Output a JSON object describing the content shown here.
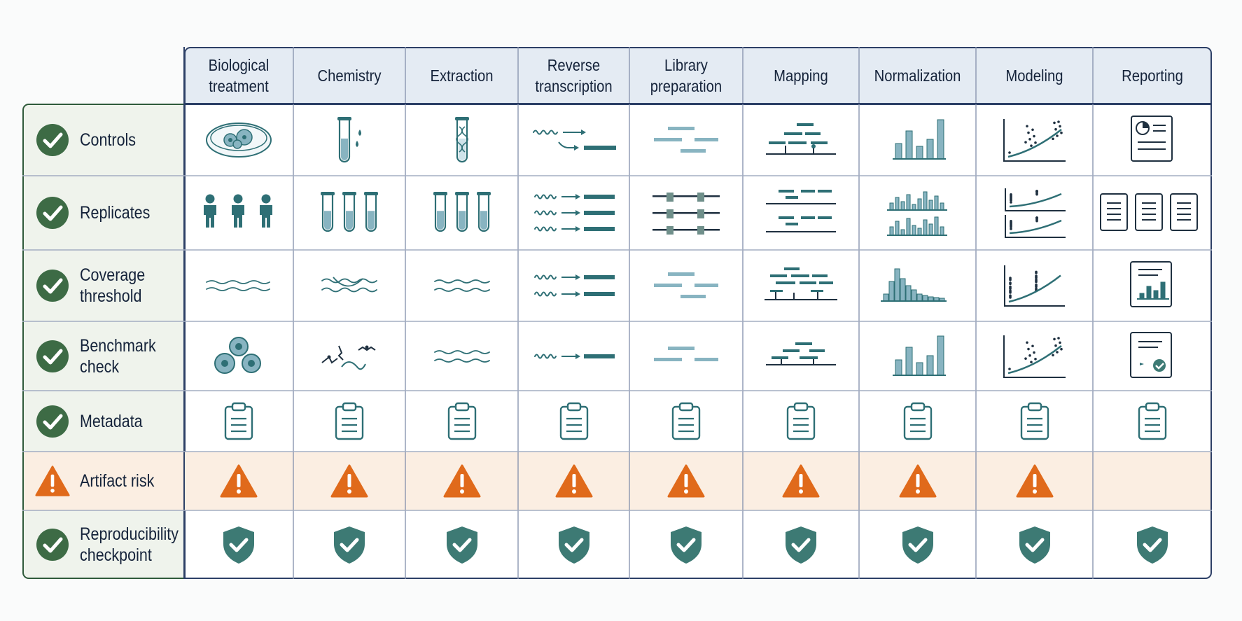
{
  "columns": [
    {
      "label": "Biological treatment"
    },
    {
      "label": "Chemistry"
    },
    {
      "label": "Extraction"
    },
    {
      "label": "Reverse transcription"
    },
    {
      "label": "Library preparation"
    },
    {
      "label": "Mapping"
    },
    {
      "label": "Normalization"
    },
    {
      "label": "Modeling"
    },
    {
      "label": "Reporting"
    }
  ],
  "rows": [
    {
      "label": "Controls",
      "status": "check"
    },
    {
      "label": "Replicates",
      "status": "check"
    },
    {
      "label": "Coverage threshold",
      "status": "check"
    },
    {
      "label": "Benchmark check",
      "status": "check"
    },
    {
      "label": "Metadata",
      "status": "check"
    },
    {
      "label": "Artifact risk",
      "status": "warning"
    },
    {
      "label": "Reproducibility checkpoint",
      "status": "check"
    }
  ],
  "cells": [
    [
      "petri-dish-icon",
      "test-tube-drops-icon",
      "test-tube-dna-icon",
      "rna-to-cdna-icon",
      "fragments-icon",
      "aligned-reads-icon",
      "bar-chart-icon",
      "scatter-plot-icon",
      "report-icon"
    ],
    [
      "people-icon",
      "three-test-tubes-icon",
      "three-test-tubes-icon",
      "rna-to-cdna-triple-icon",
      "fragments-triple-icon",
      "aligned-reads-double-icon",
      "bar-chart-double-icon",
      "scatter-plot-double-icon",
      "three-documents-icon"
    ],
    [
      "wave-single-icon",
      "wave-tangled-icon",
      "wave-double-icon",
      "rna-to-cdna-double-icon",
      "fragments-icon",
      "aligned-reads-dense-icon",
      "histogram-icon",
      "scatter-plot-dense-icon",
      "report-bar-icon"
    ],
    [
      "cells-icon",
      "molecules-icon",
      "wave-double-icon",
      "rna-to-cdna-single-icon",
      "fragments-small-icon",
      "aligned-reads-sparse-icon",
      "bar-chart-icon",
      "scatter-plot-icon",
      "certificate-icon"
    ],
    [
      "clipboard-icon",
      "clipboard-icon",
      "clipboard-icon",
      "clipboard-icon",
      "clipboard-icon",
      "clipboard-icon",
      "clipboard-icon",
      "clipboard-icon",
      "clipboard-icon"
    ],
    [
      "warning-icon",
      "warning-icon",
      "warning-icon",
      "warning-icon",
      "warning-icon",
      "warning-icon",
      "warning-icon",
      "warning-icon",
      ""
    ],
    [
      "shield-check-icon",
      "shield-check-icon",
      "shield-check-icon",
      "shield-check-icon",
      "shield-check-icon",
      "shield-check-icon",
      "shield-check-icon",
      "shield-check-icon",
      "shield-check-icon"
    ]
  ],
  "colors": {
    "header_bg": "#e4ebf3",
    "border_navy": "#2c3f66",
    "row_label_bg": "#eff3ec",
    "check_green": "#3d6b45",
    "warning_orange": "#e06a1b",
    "warning_band": "#fbeee2",
    "icon_teal": "#2e6f75",
    "icon_light": "#88b4c1",
    "shield_teal": "#3d7a74"
  }
}
